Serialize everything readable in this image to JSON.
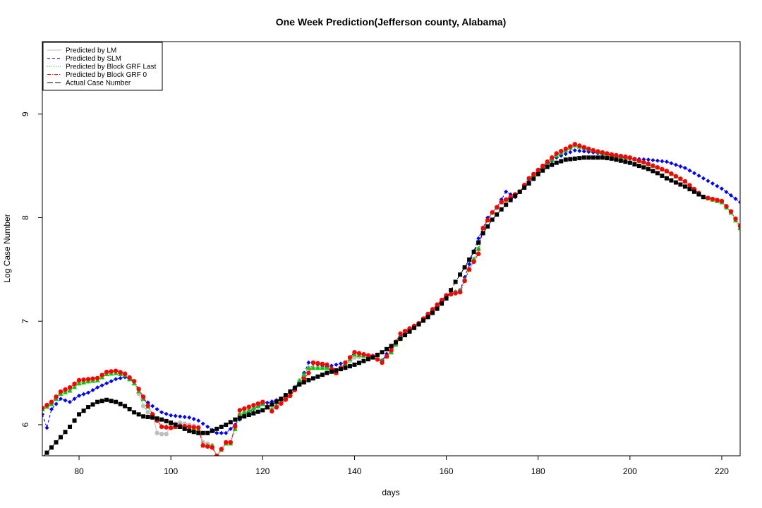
{
  "chart_data": {
    "type": "line",
    "title": "One Week Prediction(Jefferson county, Alabama)",
    "xlabel": "days",
    "ylabel": "Log Case Number",
    "xlim": [
      72,
      224
    ],
    "ylim": [
      5.7,
      9.7
    ],
    "xticks": [
      80,
      100,
      120,
      140,
      160,
      180,
      200,
      220
    ],
    "yticks": [
      6,
      7,
      8,
      9
    ],
    "legend_position": "top-left",
    "grid": false,
    "series": [
      {
        "name": "Predicted by LM",
        "color": "#bebebe",
        "line": "solid",
        "marker": "circle",
        "anchors": [
          [
            72,
            6.16
          ],
          [
            74,
            6.2
          ],
          [
            76,
            6.31
          ],
          [
            78,
            6.34
          ],
          [
            80,
            6.4
          ],
          [
            82,
            6.42
          ],
          [
            84,
            6.45
          ],
          [
            86,
            6.5
          ],
          [
            88,
            6.52
          ],
          [
            90,
            6.5
          ],
          [
            92,
            6.42
          ],
          [
            94,
            6.18
          ],
          [
            95,
            6.12
          ],
          [
            96,
            6.1
          ],
          [
            97,
            5.92
          ],
          [
            98,
            5.91
          ],
          [
            99,
            5.91
          ],
          [
            100,
            6.0
          ],
          [
            102,
            6.02
          ],
          [
            104,
            6.0
          ],
          [
            106,
            5.98
          ],
          [
            107,
            5.83
          ],
          [
            109,
            5.8
          ],
          [
            110,
            5.7
          ],
          [
            112,
            5.82
          ],
          [
            113,
            5.83
          ],
          [
            115,
            6.1
          ],
          [
            120,
            6.2
          ],
          [
            122,
            6.15
          ],
          [
            126,
            6.3
          ],
          [
            130,
            6.55
          ],
          [
            134,
            6.55
          ],
          [
            136,
            6.5
          ],
          [
            140,
            6.65
          ],
          [
            144,
            6.67
          ],
          [
            146,
            6.62
          ],
          [
            148,
            6.7
          ],
          [
            150,
            6.85
          ],
          [
            154,
            6.98
          ],
          [
            158,
            7.15
          ],
          [
            160,
            7.25
          ],
          [
            163,
            7.3
          ],
          [
            165,
            7.5
          ],
          [
            167,
            7.7
          ],
          [
            168,
            7.9
          ],
          [
            170,
            8.05
          ],
          [
            172,
            8.15
          ],
          [
            174,
            8.2
          ],
          [
            176,
            8.25
          ],
          [
            178,
            8.38
          ],
          [
            180,
            8.45
          ],
          [
            184,
            8.6
          ],
          [
            188,
            8.7
          ],
          [
            192,
            8.65
          ],
          [
            196,
            8.6
          ],
          [
            200,
            8.58
          ],
          [
            204,
            8.52
          ],
          [
            208,
            8.45
          ],
          [
            212,
            8.35
          ],
          [
            216,
            8.2
          ],
          [
            220,
            8.15
          ],
          [
            222,
            8.05
          ],
          [
            224,
            7.9
          ]
        ]
      },
      {
        "name": "Predicted by SLM",
        "color": "#0000ff",
        "line": "dashed",
        "marker": "diamond",
        "anchors": [
          [
            72,
            6.1
          ],
          [
            73,
            5.97
          ],
          [
            74,
            6.15
          ],
          [
            76,
            6.25
          ],
          [
            78,
            6.22
          ],
          [
            80,
            6.28
          ],
          [
            82,
            6.31
          ],
          [
            84,
            6.36
          ],
          [
            86,
            6.4
          ],
          [
            88,
            6.44
          ],
          [
            90,
            6.46
          ],
          [
            92,
            6.42
          ],
          [
            94,
            6.25
          ],
          [
            96,
            6.18
          ],
          [
            98,
            6.12
          ],
          [
            100,
            6.09
          ],
          [
            104,
            6.07
          ],
          [
            106,
            6.04
          ],
          [
            108,
            5.98
          ],
          [
            110,
            5.92
          ],
          [
            112,
            5.92
          ],
          [
            114,
            6.0
          ],
          [
            116,
            6.1
          ],
          [
            120,
            6.2
          ],
          [
            124,
            6.25
          ],
          [
            128,
            6.4
          ],
          [
            130,
            6.6
          ],
          [
            132,
            6.58
          ],
          [
            134,
            6.56
          ],
          [
            138,
            6.6
          ],
          [
            140,
            6.7
          ],
          [
            144,
            6.65
          ],
          [
            146,
            6.62
          ],
          [
            148,
            6.75
          ],
          [
            150,
            6.85
          ],
          [
            154,
            6.98
          ],
          [
            158,
            7.15
          ],
          [
            160,
            7.25
          ],
          [
            163,
            7.3
          ],
          [
            165,
            7.55
          ],
          [
            167,
            7.8
          ],
          [
            169,
            8.0
          ],
          [
            171,
            8.1
          ],
          [
            173,
            8.25
          ],
          [
            175,
            8.2
          ],
          [
            178,
            8.35
          ],
          [
            180,
            8.45
          ],
          [
            184,
            8.58
          ],
          [
            188,
            8.65
          ],
          [
            192,
            8.63
          ],
          [
            196,
            8.6
          ],
          [
            200,
            8.57
          ],
          [
            204,
            8.56
          ],
          [
            208,
            8.54
          ],
          [
            212,
            8.48
          ],
          [
            216,
            8.38
          ],
          [
            220,
            8.28
          ],
          [
            224,
            8.15
          ]
        ]
      },
      {
        "name": "Predicted by Block GRF Last",
        "color": "#00cd00",
        "line": "dotted",
        "marker": "triangle",
        "anchors": [
          [
            72,
            6.15
          ],
          [
            74,
            6.2
          ],
          [
            76,
            6.3
          ],
          [
            78,
            6.33
          ],
          [
            80,
            6.4
          ],
          [
            82,
            6.42
          ],
          [
            84,
            6.43
          ],
          [
            86,
            6.49
          ],
          [
            88,
            6.5
          ],
          [
            90,
            6.48
          ],
          [
            92,
            6.4
          ],
          [
            94,
            6.25
          ],
          [
            96,
            6.1
          ],
          [
            98,
            5.99
          ],
          [
            100,
            5.98
          ],
          [
            102,
            5.98
          ],
          [
            104,
            5.97
          ],
          [
            106,
            5.96
          ],
          [
            107,
            5.8
          ],
          [
            109,
            5.8
          ],
          [
            110,
            5.7
          ],
          [
            112,
            5.82
          ],
          [
            113,
            5.82
          ],
          [
            115,
            6.1
          ],
          [
            120,
            6.2
          ],
          [
            122,
            6.15
          ],
          [
            126,
            6.3
          ],
          [
            130,
            6.55
          ],
          [
            134,
            6.55
          ],
          [
            136,
            6.5
          ],
          [
            140,
            6.68
          ],
          [
            144,
            6.66
          ],
          [
            146,
            6.62
          ],
          [
            148,
            6.7
          ],
          [
            150,
            6.85
          ],
          [
            154,
            6.98
          ],
          [
            158,
            7.15
          ],
          [
            160,
            7.25
          ],
          [
            163,
            7.3
          ],
          [
            165,
            7.5
          ],
          [
            167,
            7.7
          ],
          [
            168,
            7.9
          ],
          [
            170,
            8.05
          ],
          [
            172,
            8.15
          ],
          [
            174,
            8.2
          ],
          [
            176,
            8.25
          ],
          [
            178,
            8.38
          ],
          [
            180,
            8.45
          ],
          [
            184,
            8.6
          ],
          [
            188,
            8.7
          ],
          [
            192,
            8.65
          ],
          [
            196,
            8.6
          ],
          [
            200,
            8.58
          ],
          [
            204,
            8.52
          ],
          [
            208,
            8.45
          ],
          [
            212,
            8.35
          ],
          [
            216,
            8.2
          ],
          [
            220,
            8.15
          ],
          [
            222,
            8.05
          ],
          [
            224,
            7.9
          ]
        ]
      },
      {
        "name": "Predicted by Block GRF 0",
        "color": "#ff0000",
        "line": "dashdot",
        "marker": "circle",
        "anchors": [
          [
            72,
            6.16
          ],
          [
            74,
            6.22
          ],
          [
            76,
            6.32
          ],
          [
            78,
            6.36
          ],
          [
            80,
            6.43
          ],
          [
            82,
            6.44
          ],
          [
            84,
            6.45
          ],
          [
            86,
            6.51
          ],
          [
            88,
            6.52
          ],
          [
            90,
            6.49
          ],
          [
            92,
            6.42
          ],
          [
            94,
            6.27
          ],
          [
            96,
            6.1
          ],
          [
            98,
            5.98
          ],
          [
            100,
            5.97
          ],
          [
            102,
            5.99
          ],
          [
            104,
            5.98
          ],
          [
            106,
            5.97
          ],
          [
            107,
            5.8
          ],
          [
            109,
            5.78
          ],
          [
            110,
            5.7
          ],
          [
            112,
            5.83
          ],
          [
            113,
            5.83
          ],
          [
            115,
            6.14
          ],
          [
            120,
            6.22
          ],
          [
            122,
            6.13
          ],
          [
            126,
            6.28
          ],
          [
            130,
            6.5
          ],
          [
            131,
            6.6
          ],
          [
            134,
            6.58
          ],
          [
            136,
            6.5
          ],
          [
            140,
            6.7
          ],
          [
            144,
            6.66
          ],
          [
            146,
            6.6
          ],
          [
            148,
            6.72
          ],
          [
            150,
            6.88
          ],
          [
            154,
            6.98
          ],
          [
            158,
            7.16
          ],
          [
            160,
            7.25
          ],
          [
            163,
            7.28
          ],
          [
            165,
            7.5
          ],
          [
            167,
            7.65
          ],
          [
            168,
            7.9
          ],
          [
            170,
            8.05
          ],
          [
            172,
            8.15
          ],
          [
            174,
            8.2
          ],
          [
            176,
            8.25
          ],
          [
            178,
            8.38
          ],
          [
            180,
            8.46
          ],
          [
            184,
            8.62
          ],
          [
            188,
            8.71
          ],
          [
            192,
            8.65
          ],
          [
            196,
            8.61
          ],
          [
            200,
            8.58
          ],
          [
            204,
            8.52
          ],
          [
            208,
            8.45
          ],
          [
            212,
            8.35
          ],
          [
            216,
            8.2
          ],
          [
            220,
            8.16
          ],
          [
            222,
            8.06
          ],
          [
            224,
            7.92
          ]
        ]
      },
      {
        "name": "Actual Case Number",
        "color": "#000000",
        "line": "longdash",
        "marker": "square",
        "anchors": [
          [
            72,
            5.68
          ],
          [
            74,
            5.78
          ],
          [
            76,
            5.88
          ],
          [
            78,
            5.98
          ],
          [
            80,
            6.1
          ],
          [
            82,
            6.17
          ],
          [
            84,
            6.22
          ],
          [
            86,
            6.24
          ],
          [
            88,
            6.22
          ],
          [
            90,
            6.18
          ],
          [
            92,
            6.12
          ],
          [
            94,
            6.08
          ],
          [
            96,
            6.07
          ],
          [
            98,
            6.05
          ],
          [
            100,
            6.02
          ],
          [
            102,
            5.98
          ],
          [
            104,
            5.94
          ],
          [
            106,
            5.92
          ],
          [
            108,
            5.92
          ],
          [
            110,
            5.96
          ],
          [
            112,
            6.0
          ],
          [
            114,
            6.05
          ],
          [
            116,
            6.08
          ],
          [
            120,
            6.14
          ],
          [
            124,
            6.25
          ],
          [
            126,
            6.32
          ],
          [
            128,
            6.39
          ],
          [
            130,
            6.43
          ],
          [
            134,
            6.5
          ],
          [
            138,
            6.55
          ],
          [
            140,
            6.58
          ],
          [
            144,
            6.65
          ],
          [
            146,
            6.7
          ],
          [
            148,
            6.76
          ],
          [
            150,
            6.83
          ],
          [
            152,
            6.9
          ],
          [
            154,
            6.97
          ],
          [
            156,
            7.04
          ],
          [
            158,
            7.12
          ],
          [
            160,
            7.22
          ],
          [
            162,
            7.38
          ],
          [
            164,
            7.52
          ],
          [
            166,
            7.67
          ],
          [
            168,
            7.85
          ],
          [
            170,
            7.98
          ],
          [
            172,
            8.08
          ],
          [
            174,
            8.17
          ],
          [
            176,
            8.25
          ],
          [
            178,
            8.33
          ],
          [
            180,
            8.42
          ],
          [
            182,
            8.49
          ],
          [
            184,
            8.53
          ],
          [
            186,
            8.56
          ],
          [
            188,
            8.57
          ],
          [
            190,
            8.58
          ],
          [
            192,
            8.58
          ],
          [
            194,
            8.58
          ],
          [
            196,
            8.57
          ],
          [
            198,
            8.55
          ],
          [
            200,
            8.53
          ],
          [
            202,
            8.5
          ],
          [
            204,
            8.47
          ],
          [
            206,
            8.43
          ],
          [
            208,
            8.38
          ],
          [
            210,
            8.34
          ],
          [
            212,
            8.3
          ],
          [
            214,
            8.25
          ],
          [
            216,
            8.2
          ]
        ]
      }
    ]
  }
}
